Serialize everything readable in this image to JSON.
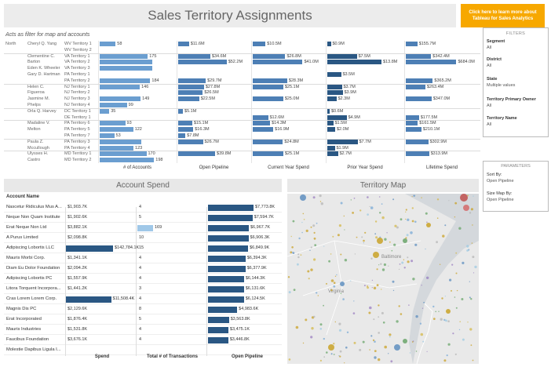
{
  "header": {
    "title": "Sales Territory Assignments",
    "cta_label": "Click here to learn more about Tableau for Sales Analytics"
  },
  "subtitle": "Acts as filter for map and accounts",
  "region": "North",
  "top_rows": [
    {
      "owner": "Cheryl Q. Yang",
      "territory": "WV Territory 1",
      "accounts": "58",
      "pipeline": "$11.6M",
      "cy": "$10.5M",
      "py": "$0.9M",
      "life": "$155.7M",
      "a": 58,
      "p": 11.6,
      "c": 10.5,
      "y": 0.9,
      "l": 155.7,
      "sep": false
    },
    {
      "owner": "",
      "territory": "WV Territory 2",
      "accounts": "",
      "pipeline": "",
      "cy": "",
      "py": "",
      "life": "",
      "a": 0,
      "p": 0,
      "c": 0,
      "y": 0,
      "l": 0,
      "sep": false
    },
    {
      "owner": "Clementine C.",
      "territory": "VA Territory 1",
      "accounts": "175",
      "pipeline": "$34.6M",
      "cy": "$26.8M",
      "py": "$7.5M",
      "life": "$342.4M",
      "a": 175,
      "p": 34.6,
      "c": 26.8,
      "y": 7.5,
      "l": 342.4,
      "sep": true
    },
    {
      "owner": "Barton",
      "territory": "VA Territory 2",
      "accounts": "",
      "pipeline": "$52.2M",
      "cy": "$41.0M",
      "py": "$13.8M",
      "life": "$684.0M",
      "a": 190,
      "p": 52.2,
      "c": 41.0,
      "y": 13.8,
      "l": 684.0,
      "sep": false
    },
    {
      "owner": "Eden K. Wheeler",
      "territory": "VA Territory 3",
      "accounts": "",
      "pipeline": "",
      "cy": "",
      "py": "",
      "life": "",
      "a": 190,
      "p": 0,
      "c": 0,
      "y": 0,
      "l": 0,
      "sep": false
    },
    {
      "owner": "Gary D. Hartman",
      "territory": "PA Territory 1",
      "accounts": "",
      "pipeline": "",
      "cy": "",
      "py": "$3.5M",
      "life": "",
      "a": 0,
      "p": 0,
      "c": 0,
      "y": 3.5,
      "l": 0,
      "sep": false
    },
    {
      "owner": "",
      "territory": "PA Territory 2",
      "accounts": "184",
      "pipeline": "$29.7M",
      "cy": "$28.3M",
      "py": "",
      "life": "$365.2M",
      "a": 184,
      "p": 29.7,
      "c": 28.3,
      "y": 0,
      "l": 365.2,
      "sep": false
    },
    {
      "owner": "Helen C.",
      "territory": "NJ Territory 1",
      "accounts": "146",
      "pipeline": "$27.8M",
      "cy": "$25.1M",
      "py": "$3.7M",
      "life": "$263.4M",
      "a": 146,
      "p": 27.8,
      "c": 25.1,
      "y": 3.7,
      "l": 263.4,
      "sep": true
    },
    {
      "owner": "Figueroa",
      "territory": "NJ Territory 2",
      "accounts": "",
      "pipeline": "$26.5M",
      "cy": "",
      "py": "$3.9M",
      "life": "",
      "a": 0,
      "p": 26.5,
      "c": 0,
      "y": 3.9,
      "l": 0,
      "sep": false
    },
    {
      "owner": "Jasmine M.",
      "territory": "NJ Territory 3",
      "accounts": "149",
      "pipeline": "$22.5M",
      "cy": "$25.0M",
      "py": "$2.3M",
      "life": "$347.0M",
      "a": 149,
      "p": 22.5,
      "c": 25.0,
      "y": 2.3,
      "l": 347.0,
      "sep": false
    },
    {
      "owner": "Phelps",
      "territory": "NJ Territory 4",
      "accounts": "99",
      "pipeline": "",
      "cy": "",
      "py": "",
      "life": "",
      "a": 99,
      "p": 0,
      "c": 0,
      "y": 0,
      "l": 0,
      "sep": false
    },
    {
      "owner": "Orla Q. Harvey",
      "territory": "DC Territory 1",
      "accounts": "35",
      "pipeline": "$5.1M",
      "cy": "",
      "py": "$0.6M",
      "life": "",
      "a": 35,
      "p": 5.1,
      "c": 0,
      "y": 0.6,
      "l": 0,
      "sep": true
    },
    {
      "owner": "",
      "territory": "DE Territory 1",
      "accounts": "",
      "pipeline": "",
      "cy": "$12.6M",
      "py": "$4.9M",
      "life": "$177.5M",
      "a": 0,
      "p": 0,
      "c": 12.6,
      "y": 4.9,
      "l": 177.5,
      "sep": false
    },
    {
      "owner": "Madaline V.",
      "territory": "PA Territory 6",
      "accounts": "93",
      "pipeline": "$15.1M",
      "cy": "$14.3M",
      "py": "$1.5M",
      "life": "$161.5M",
      "a": 93,
      "p": 15.1,
      "c": 14.3,
      "y": 1.5,
      "l": 161.5,
      "sep": true
    },
    {
      "owner": "Melton",
      "territory": "PA Territory 5",
      "accounts": "122",
      "pipeline": "$16.3M",
      "cy": "$16.9M",
      "py": "$2.0M",
      "life": "$210.1M",
      "a": 122,
      "p": 16.3,
      "c": 16.9,
      "y": 2.0,
      "l": 210.1,
      "sep": false
    },
    {
      "owner": "",
      "territory": "PA Territory 7",
      "accounts": "53",
      "pipeline": "$7.8M",
      "cy": "",
      "py": "",
      "life": "",
      "a": 53,
      "p": 7.8,
      "c": 0,
      "y": 0,
      "l": 0,
      "sep": false
    },
    {
      "owner": "Paula Z.",
      "territory": "PA Territory 3",
      "accounts": "",
      "pipeline": "$26.7M",
      "cy": "$24.8M",
      "py": "$7.7M",
      "life": "$302.9M",
      "a": 150,
      "p": 26.7,
      "c": 24.8,
      "y": 7.7,
      "l": 302.9,
      "sep": true
    },
    {
      "owner": "Mccullough",
      "territory": "PA Territory 4",
      "accounts": "123",
      "pipeline": "",
      "cy": "",
      "py": "$1.9M",
      "life": "",
      "a": 123,
      "p": 0,
      "c": 0,
      "y": 1.9,
      "l": 0,
      "sep": false
    },
    {
      "owner": "Ulysses H.",
      "territory": "MD Territory 1",
      "accounts": "170",
      "pipeline": "$39.8M",
      "cy": "$25.1M",
      "py": "$2.7M",
      "life": "$313.9M",
      "a": 170,
      "p": 39.8,
      "c": 25.1,
      "y": 2.7,
      "l": 313.9,
      "sep": true
    },
    {
      "owner": "Castro",
      "territory": "MD Territory 2",
      "accounts": "198",
      "pipeline": "",
      "cy": "",
      "py": "",
      "life": "",
      "a": 198,
      "p": 0,
      "c": 0,
      "y": 0,
      "l": 0,
      "sep": false
    }
  ],
  "top_headers": [
    "# of Accounts",
    "Open Pipeline",
    "Current Year Spend",
    "Prior Year Spend",
    "Lifetime Spend"
  ],
  "filters": {
    "header": "FILTERS",
    "items": [
      {
        "label": "Segment",
        "value": "All"
      },
      {
        "label": "District",
        "value": "All"
      },
      {
        "label": "State",
        "value": "Multiple values"
      },
      {
        "label": "Territory Primary Owner",
        "value": "All"
      },
      {
        "label": "Territory Name",
        "value": "All"
      }
    ]
  },
  "parameters": {
    "header": "PARAMETERS",
    "items": [
      {
        "label": "Sort By:",
        "value": "Open Pipeline"
      },
      {
        "label": "Size Map By:",
        "value": "Open Pipeline"
      }
    ]
  },
  "account_spend": {
    "title": "Account Spend",
    "column_header": "Account Name",
    "footer": [
      "Spend",
      "Total # of Transactions",
      "Open Pipeline"
    ],
    "rows": [
      {
        "name": "Nascetur Ridiculus Mus A...",
        "spend": "$1,903.7K",
        "trx": "4",
        "op": "$7,773.8K",
        "s": 1903.7,
        "t": 4,
        "o": 7773.8
      },
      {
        "name": "Neque Non Quam Institute",
        "spend": "$1,902.6K",
        "trx": "5",
        "op": "$7,594.7K",
        "s": 1902.6,
        "t": 5,
        "o": 7594.7
      },
      {
        "name": "Erat Neque Non Ltd",
        "spend": "$3,882.1K",
        "trx": "169",
        "op": "$6,967.7K",
        "s": 3882.1,
        "t": 169,
        "o": 6967.7
      },
      {
        "name": "A Purus Limited",
        "spend": "$2,098.8K",
        "trx": "10",
        "op": "$6,906.3K",
        "s": 2098.8,
        "t": 10,
        "o": 6906.3
      },
      {
        "name": "Adipiscing Lobortis LLC",
        "spend": "$142,784.1K",
        "trx": "15",
        "op": "$6,849.9K",
        "s": 142784.1,
        "t": 15,
        "o": 6849.9
      },
      {
        "name": "Mauris Morbi Corp.",
        "spend": "$1,341.1K",
        "trx": "4",
        "op": "$6,394.3K",
        "s": 1341.1,
        "t": 4,
        "o": 6394.3
      },
      {
        "name": "Diam Eu Dolor Foundation",
        "spend": "$2,094.2K",
        "trx": "4",
        "op": "$6,377.9K",
        "s": 2094.2,
        "t": 4,
        "o": 6377.9
      },
      {
        "name": "Adipiscing Lobortis PC",
        "spend": "$1,557.9K",
        "trx": "4",
        "op": "$6,144.3K",
        "s": 1557.9,
        "t": 4,
        "o": 6144.3
      },
      {
        "name": "Litora Torquent Incorpora...",
        "spend": "$1,441.2K",
        "trx": "3",
        "op": "$6,131.6K",
        "s": 1441.2,
        "t": 3,
        "o": 6131.6
      },
      {
        "name": "Cras Lorem Lorem Corp.",
        "spend": "$11,508.4K",
        "trx": "4",
        "op": "$6,124.5K",
        "s": 11508.4,
        "t": 4,
        "o": 6124.5
      },
      {
        "name": "Magnis Dis PC",
        "spend": "$2,129.6K",
        "trx": "8",
        "op": "$4,983.6K",
        "s": 2129.6,
        "t": 8,
        "o": 4983.6
      },
      {
        "name": "Erat Incorporated",
        "spend": "$1,876.4K",
        "trx": "5",
        "op": "$3,563.8K",
        "s": 1876.4,
        "t": 5,
        "o": 3563.8
      },
      {
        "name": "Mauris Industries",
        "spend": "$1,531.8K",
        "trx": "4",
        "op": "$3,475.1K",
        "s": 1531.8,
        "t": 4,
        "o": 3475.1
      },
      {
        "name": "Faucibus Foundation",
        "spend": "$3,676.1K",
        "trx": "4",
        "op": "$3,446.8K",
        "s": 3676.1,
        "t": 4,
        "o": 3446.8
      },
      {
        "name": "Molestie Dapibus Ligula I...",
        "spend": "",
        "trx": "",
        "op": "",
        "s": 0,
        "t": 0,
        "o": 0
      }
    ]
  },
  "map": {
    "title": "Territory Map",
    "labels": {
      "baltimore": "Baltimore",
      "virginia": "Virginia"
    }
  },
  "colors": {
    "dark_bar": "#2a5783",
    "light_bar": "#6b9ed0",
    "cta_orange": "#f7a800"
  }
}
